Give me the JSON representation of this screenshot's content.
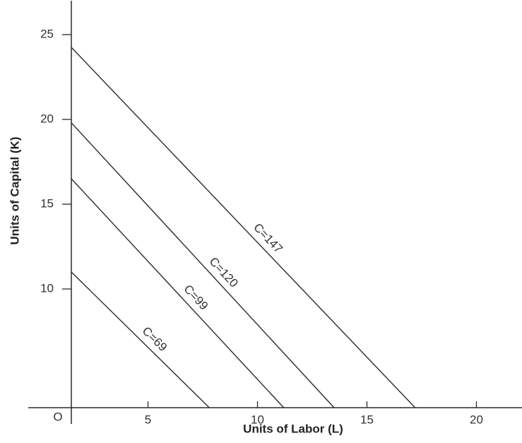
{
  "chart_data": {
    "type": "line",
    "x_label": "Units of Labor (L)",
    "y_label": "Units of Capital (K)",
    "origin_label": "O",
    "xlim": [
      1.5,
      22.1
    ],
    "ylim": [
      3,
      27
    ],
    "xticks": [
      5,
      10,
      15,
      20
    ],
    "yticks": [
      10,
      15,
      20,
      25
    ],
    "color": "#2a2a2a",
    "series": [
      {
        "name": "C=69",
        "x": [
          1.5,
          7.8
        ],
        "y": [
          11.0,
          3
        ]
      },
      {
        "name": "C=99",
        "x": [
          1.5,
          11.2
        ],
        "y": [
          16.5,
          3
        ]
      },
      {
        "name": "C=120",
        "x": [
          1.5,
          13.5
        ],
        "y": [
          19.8,
          3
        ]
      },
      {
        "name": "C=147",
        "x": [
          1.5,
          17.2
        ],
        "y": [
          24.25,
          3
        ]
      }
    ]
  }
}
